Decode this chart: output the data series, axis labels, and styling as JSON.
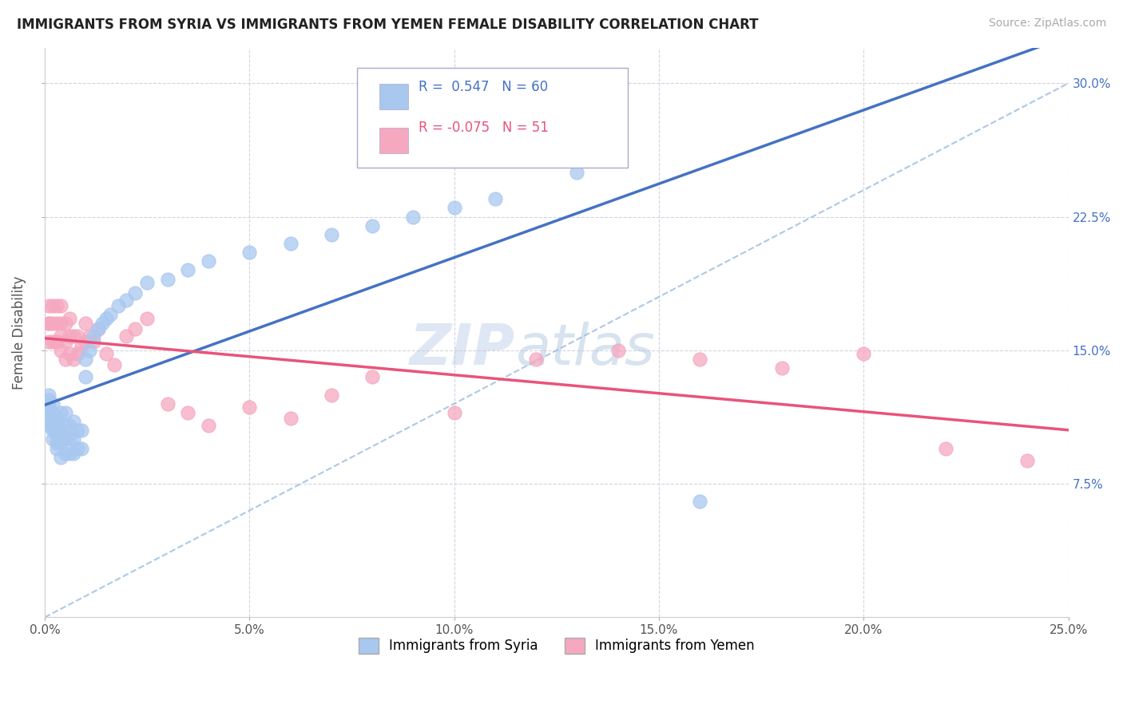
{
  "title": "IMMIGRANTS FROM SYRIA VS IMMIGRANTS FROM YEMEN FEMALE DISABILITY CORRELATION CHART",
  "source": "Source: ZipAtlas.com",
  "ylabel": "Female Disability",
  "xlim": [
    0.0,
    0.25
  ],
  "ylim": [
    0.0,
    0.32
  ],
  "xtick_values": [
    0.0,
    0.05,
    0.1,
    0.15,
    0.2,
    0.25
  ],
  "ytick_values": [
    0.075,
    0.15,
    0.225,
    0.3
  ],
  "legend_syria_label": "Immigrants from Syria",
  "legend_yemen_label": "Immigrants from Yemen",
  "syria_R": "0.547",
  "syria_N": "60",
  "yemen_R": "-0.075",
  "yemen_N": "51",
  "syria_color": "#a8c8f0",
  "yemen_color": "#f5a8c0",
  "syria_line_color": "#4472c4",
  "yemen_line_color": "#e8547a",
  "background_color": "#ffffff",
  "grid_color": "#c8c8d8",
  "syria_scatter_x": [
    0.001,
    0.001,
    0.001,
    0.001,
    0.001,
    0.001,
    0.002,
    0.002,
    0.002,
    0.002,
    0.002,
    0.002,
    0.003,
    0.003,
    0.003,
    0.003,
    0.003,
    0.003,
    0.004,
    0.004,
    0.004,
    0.004,
    0.005,
    0.005,
    0.005,
    0.005,
    0.006,
    0.006,
    0.006,
    0.007,
    0.007,
    0.007,
    0.008,
    0.008,
    0.009,
    0.009,
    0.01,
    0.01,
    0.011,
    0.012,
    0.013,
    0.014,
    0.015,
    0.016,
    0.018,
    0.02,
    0.022,
    0.025,
    0.03,
    0.035,
    0.04,
    0.05,
    0.06,
    0.07,
    0.08,
    0.09,
    0.1,
    0.11,
    0.13,
    0.16
  ],
  "syria_scatter_y": [
    0.11,
    0.118,
    0.125,
    0.108,
    0.115,
    0.122,
    0.105,
    0.112,
    0.12,
    0.1,
    0.108,
    0.115,
    0.095,
    0.102,
    0.11,
    0.098,
    0.105,
    0.112,
    0.09,
    0.098,
    0.105,
    0.115,
    0.092,
    0.1,
    0.108,
    0.115,
    0.092,
    0.1,
    0.108,
    0.092,
    0.1,
    0.11,
    0.095,
    0.105,
    0.095,
    0.105,
    0.135,
    0.145,
    0.15,
    0.158,
    0.162,
    0.165,
    0.168,
    0.17,
    0.175,
    0.178,
    0.182,
    0.188,
    0.19,
    0.195,
    0.2,
    0.205,
    0.21,
    0.215,
    0.22,
    0.225,
    0.23,
    0.235,
    0.25,
    0.065
  ],
  "yemen_scatter_x": [
    0.001,
    0.001,
    0.001,
    0.001,
    0.002,
    0.002,
    0.002,
    0.003,
    0.003,
    0.003,
    0.003,
    0.004,
    0.004,
    0.004,
    0.004,
    0.005,
    0.005,
    0.005,
    0.006,
    0.006,
    0.006,
    0.007,
    0.007,
    0.008,
    0.008,
    0.009,
    0.01,
    0.01,
    0.011,
    0.012,
    0.013,
    0.015,
    0.017,
    0.02,
    0.022,
    0.025,
    0.03,
    0.035,
    0.04,
    0.05,
    0.06,
    0.07,
    0.08,
    0.1,
    0.12,
    0.14,
    0.16,
    0.18,
    0.2,
    0.22,
    0.24
  ],
  "yemen_scatter_y": [
    0.155,
    0.165,
    0.175,
    0.165,
    0.155,
    0.165,
    0.175,
    0.155,
    0.165,
    0.175,
    0.155,
    0.15,
    0.158,
    0.165,
    0.175,
    0.145,
    0.155,
    0.165,
    0.148,
    0.158,
    0.168,
    0.145,
    0.158,
    0.148,
    0.158,
    0.152,
    0.155,
    0.165,
    0.158,
    0.155,
    0.162,
    0.148,
    0.142,
    0.158,
    0.162,
    0.168,
    0.12,
    0.115,
    0.108,
    0.118,
    0.112,
    0.125,
    0.135,
    0.115,
    0.145,
    0.15,
    0.145,
    0.14,
    0.148,
    0.095,
    0.088
  ],
  "dashed_line_color": "#99bbdd",
  "watermark_color": "#d8e4f0",
  "watermark_text": "ZIPatlas"
}
